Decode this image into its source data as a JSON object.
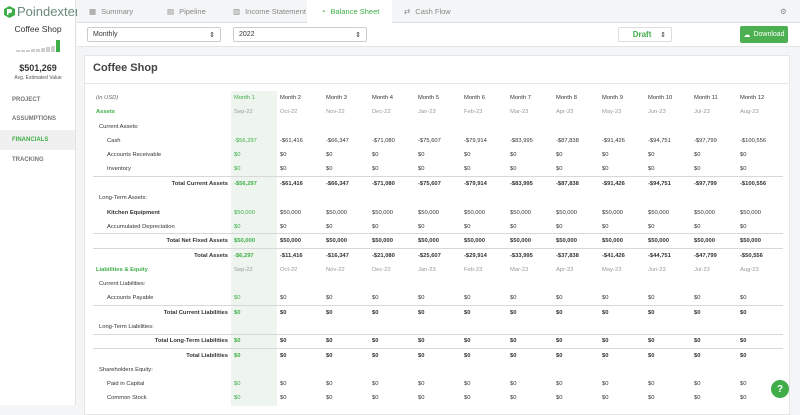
{
  "sidebar": {
    "logo": "Poindexter",
    "project": "Coffee Shop",
    "value": "$501,269",
    "value_label": "Avg. Estimated Value",
    "nav": [
      "PROJECT",
      "ASSUMPTIONS",
      "FINANCIALS",
      "TRACKING"
    ]
  },
  "tabs": [
    "Summary",
    "Pipeline",
    "Income Statement",
    "Balance Sheet",
    "Cash Flow"
  ],
  "toolbar": {
    "period": "Monthly",
    "year": "2022",
    "status": "Draft",
    "download": "Download"
  },
  "card": {
    "title": "Coffee Shop"
  },
  "table": {
    "header": [
      "(in USD)",
      "Month 1",
      "Month 2",
      "Month 3",
      "Month 4",
      "Month 5",
      "Month 6",
      "Month 7",
      "Month 8",
      "Month 9",
      "Month 10",
      "Month 11",
      "Month 12"
    ],
    "rows": [
      [
        "Assets",
        "Sep-22",
        "Oct-22",
        "Nov-22",
        "Dec-22",
        "Jan-23",
        "Feb-23",
        "Mar-23",
        "Apr-23",
        "May-23",
        "Jun-23",
        "Jul-23",
        "Aug-23"
      ],
      [
        "Current Assets:"
      ],
      [
        "Cash",
        "-$56,297",
        "-$61,416",
        "-$66,347",
        "-$71,080",
        "-$75,607",
        "-$79,914",
        "-$83,995",
        "-$87,838",
        "-$91,426",
        "-$94,751",
        "-$97,799",
        "-$100,556"
      ],
      [
        "Accounts Receivable",
        "$0",
        "$0",
        "$0",
        "$0",
        "$0",
        "$0",
        "$0",
        "$0",
        "$0",
        "$0",
        "$0",
        "$0"
      ],
      [
        "Inventory",
        "$0",
        "$0",
        "$0",
        "$0",
        "$0",
        "$0",
        "$0",
        "$0",
        "$0",
        "$0",
        "$0",
        "$0"
      ],
      [
        "Total Current Assets",
        "-$56,297",
        "-$61,416",
        "-$66,347",
        "-$71,080",
        "-$75,607",
        "-$79,914",
        "-$83,995",
        "-$87,838",
        "-$91,426",
        "-$94,751",
        "-$97,799",
        "-$100,556"
      ],
      [
        "Long-Term Assets:"
      ],
      [
        "Kitchen Equipment",
        "$50,000",
        "$50,000",
        "$50,000",
        "$50,000",
        "$50,000",
        "$50,000",
        "$50,000",
        "$50,000",
        "$50,000",
        "$50,000",
        "$50,000",
        "$50,000"
      ],
      [
        "Accumulated Depreciation",
        "$0",
        "$0",
        "$0",
        "$0",
        "$0",
        "$0",
        "$0",
        "$0",
        "$0",
        "$0",
        "$0",
        "$0"
      ],
      [
        "Total Net Fixed Assets",
        "$50,000",
        "$50,000",
        "$50,000",
        "$50,000",
        "$50,000",
        "$50,000",
        "$50,000",
        "$50,000",
        "$50,000",
        "$50,000",
        "$50,000",
        "$50,000"
      ],
      [
        "Total Assets",
        "-$6,297",
        "-$11,416",
        "-$16,347",
        "-$21,080",
        "-$25,607",
        "-$29,914",
        "-$33,995",
        "-$37,838",
        "-$41,426",
        "-$44,751",
        "-$47,799",
        "-$50,556"
      ],
      [
        "Liabilities & Equity",
        "Sep-22",
        "Oct-22",
        "Nov-22",
        "Dec-22",
        "Jan-23",
        "Feb-23",
        "Mar-23",
        "Apr-23",
        "May-23",
        "Jun-23",
        "Jul-23",
        "Aug-23"
      ],
      [
        "Current Liabilities:"
      ],
      [
        "Accounts Payable",
        "$0",
        "$0",
        "$0",
        "$0",
        "$0",
        "$0",
        "$0",
        "$0",
        "$0",
        "$0",
        "$0",
        "$0"
      ],
      [
        "Total Current Liabilities",
        "$0",
        "$0",
        "$0",
        "$0",
        "$0",
        "$0",
        "$0",
        "$0",
        "$0",
        "$0",
        "$0",
        "$0"
      ],
      [
        "Long-Term Liabilities:"
      ],
      [
        "Total Long-Term Liabilities",
        "$0",
        "$0",
        "$0",
        "$0",
        "$0",
        "$0",
        "$0",
        "$0",
        "$0",
        "$0",
        "$0",
        "$0"
      ],
      [
        "Total Liabilities",
        "$0",
        "$0",
        "$0",
        "$0",
        "$0",
        "$0",
        "$0",
        "$0",
        "$0",
        "$0",
        "$0",
        "$0"
      ],
      [
        "Shareholders Equity:"
      ],
      [
        "Paid in Capital",
        "$0",
        "$0",
        "$0",
        "$0",
        "$0",
        "$0",
        "$0",
        "$0",
        "$0",
        "$0",
        "$0",
        "$0"
      ],
      [
        "Common Stock",
        "$0",
        "$0",
        "$0",
        "$0",
        "$0",
        "$0",
        "$0",
        "$0",
        "$0",
        "$0",
        "$0",
        "$0"
      ]
    ]
  },
  "help": "?"
}
